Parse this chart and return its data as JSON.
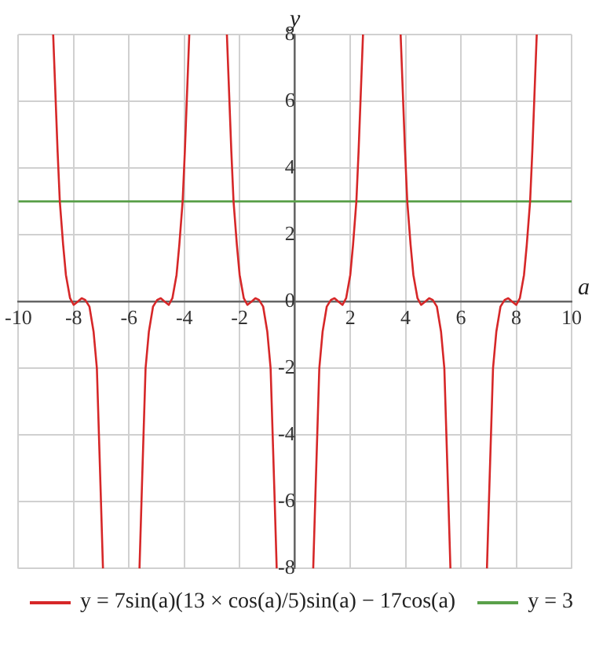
{
  "chart_data": {
    "type": "line",
    "xlabel": "a",
    "ylabel": "y",
    "xlim": [
      -10,
      10
    ],
    "ylim": [
      -8,
      8
    ],
    "xticks": [
      -10,
      -8,
      -6,
      -4,
      -2,
      {
        "value": 0,
        "label": null
      },
      2,
      4,
      6,
      8,
      10
    ],
    "yticks": [
      -8,
      -6,
      -4,
      -2,
      0,
      2,
      4,
      6,
      8
    ],
    "grid": true,
    "legend": "bottom",
    "marker": "none",
    "line_style": "solid",
    "series": [
      {
        "name": "y = 7sin(a)(13 × cos(a)/5)sin(a) − 17cos(a)",
        "color": "#d62728",
        "x": [
          -8.74,
          -8.58,
          -8.5,
          -8.38,
          -8.28,
          -8.13,
          -8.0,
          -7.85,
          -7.71,
          -7.58,
          -7.43,
          -7.28,
          -7.16,
          -7.03,
          -6.94,
          -6.3,
          -5.62,
          -5.53,
          -5.4,
          -5.28,
          -5.13,
          -4.98,
          -4.85,
          -4.71,
          -4.56,
          -4.43,
          -4.28,
          -4.18,
          -4.06,
          -3.98,
          -3.82,
          -3.14,
          -2.46,
          -2.3,
          -2.22,
          -2.1,
          -2.0,
          -1.85,
          -1.72,
          -1.57,
          -1.43,
          -1.3,
          -1.15,
          -1.0,
          -0.88,
          -0.75,
          -0.66,
          0,
          0.66,
          0.75,
          0.88,
          1.0,
          1.15,
          1.3,
          1.43,
          1.57,
          1.72,
          1.85,
          2.0,
          2.1,
          2.22,
          2.3,
          2.46,
          3.14,
          3.82,
          3.98,
          4.06,
          4.18,
          4.28,
          4.43,
          4.56,
          4.71,
          4.85,
          4.98,
          5.13,
          5.28,
          5.4,
          5.53,
          5.62,
          6.3,
          6.94,
          7.03,
          7.16,
          7.28,
          7.43,
          7.58,
          7.71,
          7.85,
          8.0,
          8.13,
          8.28,
          8.38,
          8.5,
          8.58,
          8.74
        ],
        "values": [
          8,
          4.5,
          3,
          1.7,
          0.8,
          0.1,
          -0.1,
          0,
          0.1,
          0.05,
          -0.15,
          -0.9,
          -2,
          -5.5,
          -8,
          null,
          -8,
          -5.5,
          -2,
          -0.9,
          -0.15,
          0.05,
          0.1,
          0,
          -0.1,
          0.1,
          0.8,
          1.7,
          3,
          4.5,
          8,
          null,
          8,
          4.5,
          3,
          1.7,
          0.8,
          0.1,
          -0.1,
          0,
          0.1,
          0.05,
          -0.15,
          -0.9,
          -2,
          -5.5,
          -8,
          null,
          -8,
          -5.5,
          -2,
          -0.9,
          -0.15,
          0.05,
          0.1,
          0,
          -0.1,
          0.1,
          0.8,
          1.7,
          3,
          4.5,
          8,
          null,
          8,
          4.5,
          3,
          1.7,
          0.8,
          0.1,
          -0.1,
          0,
          0.1,
          0.05,
          -0.15,
          -0.9,
          -2,
          -5.5,
          -8,
          null,
          -8,
          -5.5,
          -2,
          -0.9,
          -0.15,
          0.05,
          0.1,
          0,
          -0.1,
          0.1,
          0.8,
          1.7,
          3,
          4.5,
          8
        ]
      },
      {
        "name": "y = 3",
        "color": "#5aa04a",
        "x": [
          -10,
          10
        ],
        "values": [
          3,
          3
        ]
      }
    ]
  }
}
